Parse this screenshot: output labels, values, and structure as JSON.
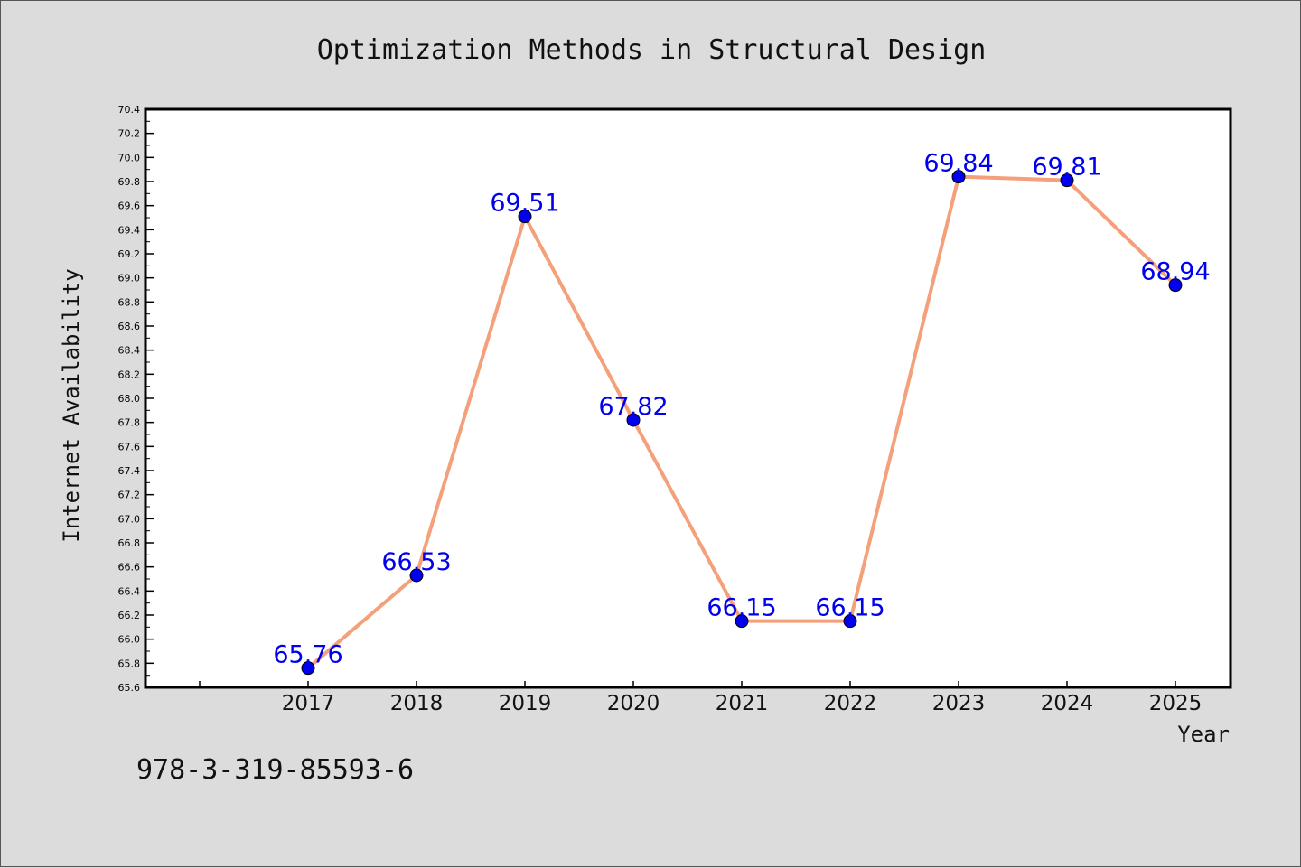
{
  "chart_data": {
    "type": "line",
    "title": "Optimization Methods in Structural Design",
    "xlabel": "Year",
    "ylabel": "Internet Availability",
    "categories": [
      "2017",
      "2018",
      "2019",
      "2020",
      "2021",
      "2022",
      "2023",
      "2024",
      "2025"
    ],
    "series": [
      {
        "values": [
          65.76,
          66.53,
          69.51,
          67.82,
          66.15,
          66.15,
          69.84,
          69.81,
          68.94
        ],
        "labels": [
          "65.76",
          "66.53",
          "69.51",
          "67.82",
          "66.15",
          "66.15",
          "69.84",
          "69.81",
          "68.94"
        ],
        "line_color": "#f4a07a",
        "marker_color": "#0000ee"
      }
    ],
    "ylim": [
      65.6,
      70.4
    ],
    "yticks": [
      "65.6",
      "65.8",
      "66.0",
      "66.2",
      "66.4",
      "66.6",
      "66.8",
      "67.0",
      "67.2",
      "67.4",
      "67.6",
      "67.8",
      "68.0",
      "68.2",
      "68.4",
      "68.6",
      "68.8",
      "69.0",
      "69.2",
      "69.4",
      "69.6",
      "69.8",
      "70.0",
      "70.2",
      "70.4"
    ],
    "grid": false,
    "label_color": "#0000ee"
  },
  "footer": {
    "isbn": "978-3-319-85593-6"
  }
}
